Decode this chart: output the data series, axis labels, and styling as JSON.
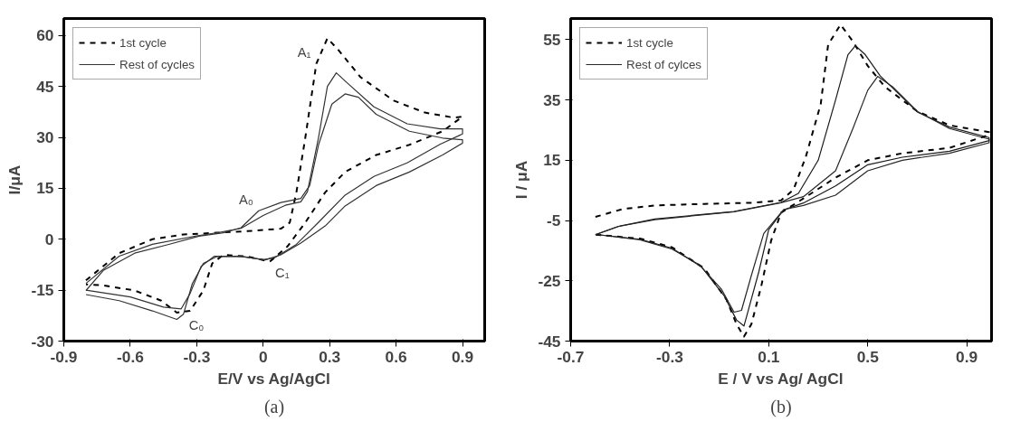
{
  "chart_data": [
    {
      "type": "line",
      "xlabel": "E/V vs Ag/AgCl",
      "ylabel": "I/μA",
      "xlim": [
        -0.9,
        1.0
      ],
      "ylim": [
        -30,
        65
      ],
      "xticks": [
        -0.9,
        -0.6,
        -0.3,
        0,
        0.3,
        0.6,
        0.9
      ],
      "yticks": [
        -30,
        -15,
        0,
        15,
        30,
        45,
        60
      ],
      "grid": false,
      "legend": "top left",
      "series": [
        {
          "name": "1st cycle",
          "color": "#000000",
          "line_style": "dashed",
          "x": [
            -0.8,
            -0.65,
            -0.5,
            -0.36,
            -0.21,
            -0.07,
            0.08,
            0.12,
            0.15,
            0.19,
            0.24,
            0.29,
            0.34,
            0.44,
            0.59,
            0.73,
            0.86,
            0.9,
            0.81,
            0.66,
            0.51,
            0.37,
            0.28,
            0.19,
            0.11,
            0.03,
            -0.07,
            -0.18,
            -0.23,
            -0.27,
            -0.33,
            -0.39,
            -0.46,
            -0.58,
            -0.72,
            -0.8
          ],
          "values": [
            -12.1,
            -4.1,
            0,
            1.4,
            1.9,
            2.4,
            3.1,
            4.9,
            13.8,
            29.8,
            51.7,
            59.2,
            55.7,
            47.7,
            40.8,
            37.3,
            35.8,
            36.1,
            31.8,
            27.8,
            24.8,
            19.8,
            13.8,
            4.9,
            -2.1,
            -6.6,
            -5.1,
            -4.6,
            -7.1,
            -15.1,
            -21.1,
            -21.6,
            -18.1,
            -15.1,
            -13.6,
            -13.3
          ]
        },
        {
          "color": "#333333",
          "line_style": "solid",
          "x": [
            -0.8,
            -0.65,
            -0.5,
            -0.3,
            -0.2,
            -0.1,
            0,
            0.1,
            0.17,
            0.2,
            0.25,
            0.29,
            0.33,
            0.38,
            0.5,
            0.65,
            0.8,
            0.9,
            0.9,
            0.8,
            0.65,
            0.5,
            0.37,
            0.25,
            0.15,
            0.05,
            0,
            -0.1,
            -0.22,
            -0.28,
            -0.33,
            -0.37,
            -0.45,
            -0.6,
            -0.8
          ],
          "values": [
            -13,
            -5,
            -1.5,
            1,
            2,
            3.2,
            7,
            10,
            11,
            14,
            30,
            45,
            49,
            46,
            39,
            34,
            32.5,
            32.5,
            31,
            28,
            22.5,
            18.5,
            13,
            5,
            -1.5,
            -5.5,
            -6,
            -5,
            -5,
            -8,
            -16,
            -20.5,
            -20,
            -17,
            -15
          ]
        },
        {
          "name": "Rest of cycles",
          "color": "#333333",
          "line_style": "solid",
          "x": [
            -0.8,
            -0.72,
            -0.58,
            -0.43,
            -0.29,
            -0.18,
            -0.1,
            -0.02,
            0.08,
            0.17,
            0.21,
            0.25,
            0.31,
            0.37,
            0.43,
            0.51,
            0.66,
            0.81,
            0.9,
            0.9,
            0.81,
            0.66,
            0.51,
            0.37,
            0.28,
            0.17,
            0.08,
            0.01,
            -0.1,
            -0.21,
            -0.27,
            -0.32,
            -0.36,
            -0.39,
            -0.5,
            -0.65,
            -0.8
          ],
          "values": [
            -15.1,
            -9.1,
            -4.1,
            -1.6,
            0.9,
            1.9,
            3.4,
            8.4,
            10.8,
            12,
            15.8,
            27.8,
            39.8,
            42.8,
            41.8,
            36.8,
            31.8,
            29.8,
            29.3,
            28.3,
            24.8,
            19.8,
            15.8,
            9.8,
            3.9,
            -1.1,
            -4.6,
            -6.1,
            -5.1,
            -5.1,
            -7.1,
            -13.1,
            -22.1,
            -23.6,
            -21.1,
            -18.1,
            -16.3
          ]
        }
      ],
      "annotations": [
        {
          "text": "A₁",
          "x": 0.24,
          "y": 51.7
        },
        {
          "text": "A₀",
          "x": -0.02,
          "y": 8.4
        },
        {
          "text": "C₁",
          "x": 0.03,
          "y": -6.6
        },
        {
          "text": "C₀",
          "x": -0.36,
          "y": -22.1
        },
        "(a)"
      ]
    },
    {
      "type": "line",
      "xlabel": "E / V vs Ag/ AgCl",
      "ylabel": "I / μA",
      "xlim": [
        -0.7,
        1.0
      ],
      "ylim": [
        -45,
        62
      ],
      "xticks": [
        -0.7,
        -0.3,
        0.1,
        0.5,
        0.9
      ],
      "yticks": [
        -45,
        -25,
        -5,
        15,
        35,
        55
      ],
      "grid": false,
      "legend": "top left",
      "series": [
        {
          "name": "1st cycle",
          "color": "#000000",
          "line_style": "dashed",
          "x": [
            -0.6,
            -0.49,
            -0.36,
            -0.16,
            0.04,
            0.15,
            0.2,
            0.25,
            0.31,
            0.34,
            0.39,
            0.44,
            0.5,
            0.57,
            0.7,
            0.83,
            0.99,
            0.99,
            0.83,
            0.64,
            0.5,
            0.37,
            0.24,
            0.15,
            0.11,
            0.07,
            0.03,
            0.0,
            -0.03,
            -0.07,
            -0.16,
            -0.29,
            -0.42,
            -0.6
          ],
          "values": [
            -3.8,
            -1.2,
            0,
            0.5,
            0.9,
            1.7,
            5.2,
            16.2,
            33.6,
            53.3,
            60,
            54.4,
            46.3,
            39.3,
            31.2,
            26.6,
            24.3,
            23.4,
            19.1,
            17.3,
            15,
            9.2,
            2.3,
            -2.4,
            -11.6,
            -26.7,
            -39.4,
            -43.5,
            -39.4,
            -31.3,
            -20.9,
            -13.9,
            -11,
            -9.7
          ]
        },
        {
          "color": "#1a1a1a",
          "line_style": "solid",
          "x": [
            -0.6,
            -0.5,
            -0.36,
            -0.04,
            0.15,
            0.22,
            0.3,
            0.37,
            0.42,
            0.45,
            0.49,
            0.55,
            0.7,
            0.83,
            0.99,
            0.99,
            0.83,
            0.64,
            0.5,
            0.37,
            0.24,
            0.16,
            0.1,
            0.06,
            0.02,
            0.0,
            -0.03,
            -0.08,
            -0.17,
            -0.29,
            -0.42,
            -0.59
          ],
          "values": [
            -9.7,
            -6.8,
            -4.5,
            -2,
            1,
            4,
            15,
            35,
            50,
            53,
            50,
            43,
            31,
            26,
            22.5,
            21.5,
            18,
            16,
            13.5,
            6.5,
            0.8,
            -1.5,
            -8,
            -22,
            -34,
            -40,
            -38,
            -30,
            -20.5,
            -14.2,
            -11.2,
            -9.7
          ]
        },
        {
          "name": "Rest of cylces",
          "color": "#262626",
          "line_style": "solid",
          "x": [
            -0.6,
            -0.51,
            -0.36,
            -0.04,
            0.15,
            0.24,
            0.37,
            0.44,
            0.5,
            0.54,
            0.6,
            0.7,
            0.83,
            0.99,
            0.99,
            0.83,
            0.64,
            0.5,
            0.37,
            0.24,
            0.16,
            0.08,
            0.03,
            -0.01,
            -0.04,
            -0.09,
            -0.18,
            -0.29,
            -0.42,
            -0.59
          ],
          "values": [
            -9.7,
            -7,
            -4.7,
            -2.1,
            0.9,
            2.9,
            11.5,
            25.5,
            38.2,
            42.8,
            39.4,
            31.2,
            25.5,
            22,
            20.8,
            17.3,
            15,
            11.5,
            3.4,
            0,
            -1.4,
            -9.3,
            -23.2,
            -34.8,
            -35.4,
            -27.9,
            -19.7,
            -14.5,
            -11.4,
            -9.7
          ]
        }
      ],
      "annotations": [
        "(b)"
      ]
    }
  ]
}
